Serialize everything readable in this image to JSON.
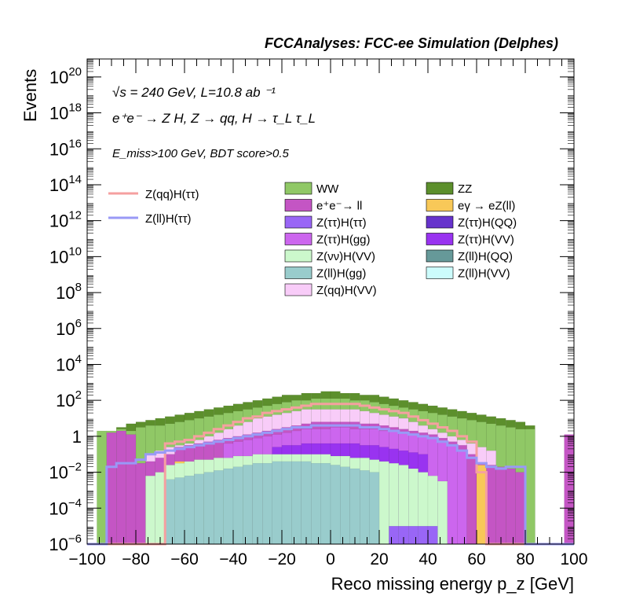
{
  "header": "FCCAnalyses: FCC-ee Simulation (Delphes)",
  "annotations": {
    "energy": "√s = 240 GeV, L=10.8 ab ⁻¹",
    "process": "e⁺e⁻ → Z H, Z → qq, H → τ_L τ_L",
    "cuts": "E_miss>100 GeV, BDT score>0.5"
  },
  "colors": {
    "WW": "#90c866",
    "ZZ": "#5c8f2c",
    "ee_ll": "#c455c4",
    "egamma_eZll": "#f8c858",
    "Ztautau_Htautau": "#9966f6",
    "Ztautau_HQQ": "#6633cc",
    "Ztautau_Hgg": "#cc66ee",
    "Ztautau_HVV": "#9933f0",
    "Znunu_HVV": "#ccf8cc",
    "Zll_HQQ": "#669999",
    "Zll_Hgg": "#99cccc",
    "Zll_HVV": "#ccfcfc",
    "Zqq_HVV": "#f8ccf8",
    "sig_qq": "#f5a0a0",
    "sig_ll": "#9999f6"
  },
  "chart_data": {
    "type": "bar",
    "subtype": "stacked-histogram-log",
    "title": "FCCAnalyses: FCC-ee Simulation (Delphes)",
    "xlabel": "Reco missing energy p_z [GeV]",
    "ylabel": "Events",
    "xlim": [
      -100,
      100
    ],
    "ylim": [
      1e-06,
      1e+21
    ],
    "yscale": "log",
    "bin_width": 4,
    "x_ticks": [
      -100,
      -80,
      -60,
      -40,
      -20,
      0,
      20,
      40,
      60,
      80,
      100
    ],
    "y_ticks": [
      {
        "exp": -6,
        "label": "10"
      },
      {
        "exp": -4,
        "label": "10"
      },
      {
        "exp": -2,
        "label": "10"
      },
      {
        "exp": 0,
        "label": "1"
      },
      {
        "exp": 2,
        "label": "10"
      },
      {
        "exp": 4,
        "label": "10"
      },
      {
        "exp": 6,
        "label": "10"
      },
      {
        "exp": 8,
        "label": "10"
      },
      {
        "exp": 10,
        "label": "10"
      },
      {
        "exp": 12,
        "label": "10"
      },
      {
        "exp": 14,
        "label": "10"
      },
      {
        "exp": 16,
        "label": "10"
      },
      {
        "exp": 18,
        "label": "10"
      },
      {
        "exp": 20,
        "label": "10"
      }
    ],
    "legend_signals": [
      {
        "name": "Z(qq)H(ττ)",
        "color_key": "sig_qq"
      },
      {
        "name": "Z(ll)H(ττ)",
        "color_key": "sig_ll"
      }
    ],
    "legend_backgrounds": [
      {
        "name": "WW",
        "color_key": "WW"
      },
      {
        "name": "ZZ",
        "color_key": "ZZ"
      },
      {
        "name": "e⁺e⁻→ ll",
        "color_key": "ee_ll"
      },
      {
        "name": "eγ → eZ(ll)",
        "color_key": "egamma_eZll"
      },
      {
        "name": "Z(ττ)H(ττ)",
        "color_key": "Ztautau_Htautau"
      },
      {
        "name": "Z(ττ)H(QQ)",
        "color_key": "Ztautau_HQQ"
      },
      {
        "name": "Z(ττ)H(gg)",
        "color_key": "Ztautau_Hgg"
      },
      {
        "name": "Z(ττ)H(VV)",
        "color_key": "Ztautau_HVV"
      },
      {
        "name": "Z(νν)H(VV)",
        "color_key": "Znunu_HVV"
      },
      {
        "name": "Z(ll)H(QQ)",
        "color_key": "Zll_HQQ"
      },
      {
        "name": "Z(ll)H(gg)",
        "color_key": "Zll_Hgg"
      },
      {
        "name": "Z(ll)H(VV)",
        "color_key": "Zll_HVV"
      },
      {
        "name": "Z(qq)H(VV)",
        "color_key": "Zqq_HVV"
      }
    ],
    "stack_layers": [
      {
        "name": "Z(ll)H(gg)",
        "color_key": "Zll_Hgg",
        "exps": [
          -7,
          -7,
          -7,
          -7,
          -7,
          -7,
          -7,
          -7,
          -2.4,
          -2.3,
          -2.2,
          -2.1,
          -2.0,
          -1.9,
          -1.8,
          -1.7,
          -1.6,
          -1.5,
          -1.5,
          -1.4,
          -1.4,
          -1.4,
          -1.4,
          -1.5,
          -1.5,
          -1.6,
          -1.7,
          -1.8,
          -1.9,
          -2.0,
          -7,
          -7,
          -7,
          -7,
          -7,
          -7,
          -7,
          -7,
          -7,
          -7,
          -7,
          -7,
          -7,
          -7,
          -7,
          -7,
          -7,
          -7,
          -7,
          -7
        ]
      },
      {
        "name": "Z(ττ)H(ττ)",
        "color_key": "Ztautau_Htautau",
        "exps": [
          -7,
          -7,
          -7,
          -7,
          -7,
          -7,
          -7,
          -7,
          -7,
          -7,
          -7,
          -7,
          -7,
          -7,
          -7,
          -7,
          -7,
          -7,
          -7,
          -7,
          -7,
          -7,
          -7,
          -7,
          -7,
          -7,
          -7,
          -7,
          -7,
          -7,
          -6,
          -5,
          -5,
          -5,
          -5,
          -5,
          -7,
          -7,
          -7,
          -7,
          -7,
          -7,
          -7,
          -7,
          -7,
          -7,
          -7,
          -7,
          -7,
          -7
        ]
      },
      {
        "name": "Z(νν)H(VV)",
        "color_key": "Znunu_HVV",
        "exps": [
          -7,
          -7,
          -7,
          -7,
          -7,
          -7,
          -2.2,
          -2.0,
          -1.6,
          -1.5,
          -1.4,
          -1.3,
          -1.3,
          -1.2,
          -1.2,
          -1.1,
          -1.1,
          -1.0,
          -1.0,
          -1.0,
          -1.0,
          -1.0,
          -1.0,
          -1.0,
          -1.0,
          -1.1,
          -1.1,
          -1.2,
          -1.2,
          -1.3,
          -1.4,
          -1.5,
          -1.6,
          -1.8,
          -2.0,
          -2.2,
          -2.5,
          -7,
          -7,
          -7,
          -7,
          -7,
          -7,
          -7,
          -7,
          -7,
          -7,
          -7,
          -7,
          -7
        ]
      },
      {
        "name": "eγ → eZ(ll)",
        "color_key": "egamma_eZll",
        "exps": [
          -7,
          -7,
          -7,
          -7,
          -7,
          -7,
          -7,
          -7,
          -7,
          -1.4,
          -7,
          -1.4,
          -7,
          -7,
          -1.4,
          -1.3,
          -7,
          -7,
          -7,
          -7,
          -7,
          -7,
          -7,
          -7,
          -7,
          -7,
          -7,
          -7,
          -7,
          -7,
          -7,
          -7,
          -7,
          -7,
          -7,
          -7,
          -7,
          -7,
          -7,
          -7,
          -1.6,
          -7,
          -7,
          -7,
          -7,
          -7,
          -7,
          -7,
          -7,
          -7
        ]
      },
      {
        "name": "Z(ττ)H(VV)",
        "color_key": "Ztautau_HVV",
        "exps": [
          -7,
          -7,
          -7,
          -7,
          -7,
          -7,
          -7,
          -7,
          -7,
          -7,
          -7,
          -7,
          -7,
          -7,
          -7,
          -7,
          -7,
          -7,
          -7,
          -0.6,
          -0.5,
          -0.5,
          -0.4,
          -0.4,
          -0.4,
          -0.4,
          -0.4,
          -0.4,
          -0.5,
          -0.5,
          -0.6,
          -0.7,
          -0.8,
          -0.9,
          -1.0,
          -7,
          -7,
          -7,
          -7,
          -7,
          -7,
          -7,
          -7,
          -7,
          -7,
          -7,
          -7,
          -7,
          -7,
          -7
        ]
      },
      {
        "name": "Z(ττ)H(gg)",
        "color_key": "Ztautau_Hgg",
        "exps": [
          -7,
          -7,
          -7,
          -7,
          -7,
          -7,
          -7,
          -7,
          -7,
          -7,
          -7,
          -7,
          -7,
          -7,
          -0.4,
          -0.3,
          -0.2,
          -0.1,
          0.0,
          0.1,
          0.2,
          0.3,
          0.4,
          0.4,
          0.4,
          0.5,
          0.5,
          0.4,
          0.4,
          0.4,
          0.3,
          0.3,
          0.2,
          0.1,
          0.0,
          -0.1,
          -0.3,
          -0.5,
          -0.8,
          -7,
          -7,
          -7,
          -7,
          -7,
          -7,
          -7,
          -7,
          -7,
          -7,
          -7
        ]
      },
      {
        "name": "e⁺e⁻→ ll",
        "color_key": "ee_ll",
        "exps": [
          -7,
          -7,
          0.2,
          0.3,
          0.1,
          -1.5,
          -1.4,
          -1.2,
          -1.0,
          -0.6,
          -0.5,
          -0.4,
          -0.3,
          -0.2,
          -0.1,
          0.0,
          0.1,
          0.2,
          0.3,
          0.4,
          0.5,
          0.6,
          0.7,
          0.8,
          0.8,
          0.8,
          0.8,
          0.8,
          0.7,
          0.7,
          0.6,
          0.5,
          0.4,
          0.3,
          0.2,
          0.1,
          -0.1,
          -0.3,
          -0.5,
          -1.0,
          -1.5,
          -1.6,
          -1.7,
          -1.8,
          -2.0,
          -7,
          -7,
          -7,
          -7,
          0.1
        ]
      },
      {
        "name": "Z(qq)H(VV)",
        "color_key": "Zqq_HVV",
        "exps": [
          -7,
          -7,
          -7,
          -7,
          -7,
          -7,
          -1.0,
          -0.8,
          -0.6,
          -0.5,
          -0.4,
          -0.2,
          0.0,
          0.2,
          0.4,
          0.6,
          0.8,
          1.0,
          1.1,
          1.2,
          1.3,
          1.4,
          1.5,
          1.5,
          1.5,
          1.5,
          1.5,
          1.5,
          1.4,
          1.3,
          1.2,
          1.1,
          1.0,
          0.8,
          0.6,
          0.4,
          0.2,
          0.0,
          -0.2,
          -0.4,
          -0.6,
          -0.8,
          -7,
          -7,
          -7,
          -7,
          -7,
          -7,
          -7,
          -7
        ]
      },
      {
        "name": "WW",
        "color_key": "WW",
        "exps": [
          -7,
          0.3,
          0.3,
          0.4,
          0.3,
          0.5,
          0.6,
          0.6,
          0.7,
          0.8,
          0.9,
          1.0,
          1.1,
          1.2,
          1.3,
          1.4,
          1.5,
          1.6,
          1.7,
          1.8,
          1.9,
          2.0,
          2.0,
          2.1,
          2.1,
          2.1,
          2.1,
          2.0,
          2.0,
          1.9,
          1.8,
          1.7,
          1.6,
          1.5,
          1.4,
          1.3,
          1.2,
          1.1,
          1.0,
          0.9,
          0.8,
          0.7,
          0.6,
          0.5,
          0.4,
          0.4,
          -7,
          -7,
          -7,
          -7
        ]
      },
      {
        "name": "ZZ",
        "color_key": "ZZ",
        "exps": [
          -7,
          -7,
          -7,
          0.5,
          0.7,
          0.8,
          0.9,
          1.0,
          1.1,
          1.2,
          1.3,
          1.4,
          1.5,
          1.6,
          1.7,
          1.8,
          1.9,
          2.0,
          2.1,
          2.2,
          2.3,
          2.3,
          2.4,
          2.4,
          2.5,
          2.5,
          2.4,
          2.4,
          2.3,
          2.3,
          2.2,
          2.1,
          2.0,
          1.9,
          1.8,
          1.7,
          1.6,
          1.5,
          1.4,
          1.3,
          1.2,
          1.1,
          1.0,
          0.9,
          0.8,
          0.6,
          -7,
          -7,
          -7,
          -7
        ]
      }
    ],
    "signal_lines": [
      {
        "name": "Z(qq)H(ττ)",
        "color_key": "sig_qq",
        "exps": [
          -7,
          -7,
          -7,
          -7,
          -7,
          -7,
          -7,
          -7,
          -0.4,
          -0.3,
          -0.2,
          0.0,
          0.2,
          0.4,
          0.6,
          0.8,
          1.0,
          1.1,
          1.3,
          1.4,
          1.5,
          1.6,
          1.7,
          1.8,
          1.8,
          1.8,
          1.8,
          1.8,
          1.7,
          1.6,
          1.5,
          1.4,
          1.3,
          1.1,
          0.9,
          0.7,
          0.5,
          0.3,
          0.0,
          -0.3,
          -2.0,
          -7,
          -7,
          -7,
          -7,
          -7,
          -7,
          -7,
          -7,
          -7
        ]
      },
      {
        "name": "Z(ll)H(ττ)",
        "color_key": "sig_ll",
        "exps": [
          -7,
          -7,
          -1.7,
          -1.5,
          -1.5,
          -1.3,
          -1.0,
          -0.9,
          -0.8,
          -0.7,
          -0.6,
          -0.5,
          -0.4,
          -0.3,
          -0.2,
          -0.1,
          0.0,
          0.1,
          0.2,
          0.3,
          0.4,
          0.5,
          0.5,
          0.6,
          0.6,
          0.6,
          0.6,
          0.6,
          0.5,
          0.5,
          0.4,
          0.3,
          0.2,
          0.1,
          0.0,
          -0.1,
          -0.3,
          -0.5,
          -0.8,
          -1.2,
          -1.5,
          -1.7,
          -1.8,
          -1.7,
          -1.7,
          -7,
          -7,
          -7,
          -7,
          -7
        ]
      }
    ]
  }
}
